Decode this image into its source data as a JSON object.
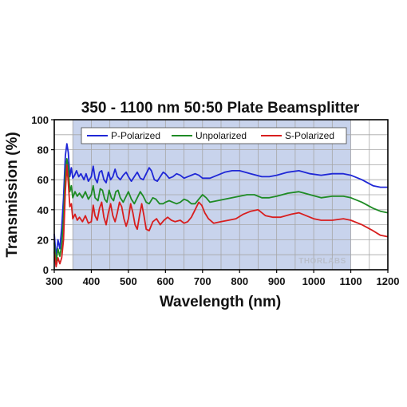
{
  "chart_data": {
    "type": "line",
    "title": "350 - 1100 nm 50:50 Plate Beamsplitter",
    "xlabel": "Wavelength (nm)",
    "ylabel": "Transmission (%)",
    "xlim": [
      300,
      1200
    ],
    "ylim": [
      0,
      100
    ],
    "x_ticks": [
      300,
      400,
      500,
      600,
      700,
      800,
      900,
      1000,
      1100,
      1200
    ],
    "y_ticks": [
      0,
      20,
      40,
      60,
      80,
      100
    ],
    "grid": true,
    "legend_position": "top",
    "shaded_band": {
      "x_range": [
        350,
        1100
      ],
      "color": "#c8d3ec"
    },
    "watermark": "THORLABS",
    "series": [
      {
        "name": "P-Polarized",
        "color": "#1f27d6",
        "points": [
          [
            300,
            24
          ],
          [
            305,
            8
          ],
          [
            310,
            20
          ],
          [
            315,
            14
          ],
          [
            320,
            28
          ],
          [
            325,
            48
          ],
          [
            330,
            76
          ],
          [
            334,
            84
          ],
          [
            338,
            78
          ],
          [
            342,
            62
          ],
          [
            346,
            68
          ],
          [
            350,
            61
          ],
          [
            355,
            63
          ],
          [
            360,
            66
          ],
          [
            366,
            62
          ],
          [
            372,
            64
          ],
          [
            380,
            60
          ],
          [
            386,
            64
          ],
          [
            392,
            59
          ],
          [
            400,
            62
          ],
          [
            405,
            69
          ],
          [
            410,
            61
          ],
          [
            416,
            58
          ],
          [
            422,
            65
          ],
          [
            428,
            66
          ],
          [
            434,
            60
          ],
          [
            440,
            58
          ],
          [
            446,
            65
          ],
          [
            452,
            60
          ],
          [
            458,
            62
          ],
          [
            464,
            67
          ],
          [
            470,
            62
          ],
          [
            478,
            60
          ],
          [
            486,
            63
          ],
          [
            494,
            65
          ],
          [
            500,
            62
          ],
          [
            508,
            59
          ],
          [
            516,
            62
          ],
          [
            524,
            65
          ],
          [
            532,
            61
          ],
          [
            540,
            60
          ],
          [
            548,
            64
          ],
          [
            556,
            68
          ],
          [
            562,
            66
          ],
          [
            570,
            60
          ],
          [
            578,
            59
          ],
          [
            586,
            62
          ],
          [
            594,
            65
          ],
          [
            600,
            64
          ],
          [
            610,
            61
          ],
          [
            620,
            62
          ],
          [
            630,
            64
          ],
          [
            640,
            63
          ],
          [
            650,
            61
          ],
          [
            660,
            62
          ],
          [
            670,
            63
          ],
          [
            680,
            64
          ],
          [
            690,
            63
          ],
          [
            700,
            61
          ],
          [
            720,
            61
          ],
          [
            740,
            63
          ],
          [
            760,
            65
          ],
          [
            780,
            66
          ],
          [
            800,
            66
          ],
          [
            830,
            64
          ],
          [
            860,
            62
          ],
          [
            880,
            62
          ],
          [
            900,
            63
          ],
          [
            930,
            65
          ],
          [
            960,
            66
          ],
          [
            990,
            64
          ],
          [
            1020,
            63
          ],
          [
            1050,
            64
          ],
          [
            1080,
            64
          ],
          [
            1100,
            63
          ],
          [
            1130,
            60
          ],
          [
            1160,
            56
          ],
          [
            1180,
            55
          ],
          [
            1200,
            55
          ]
        ]
      },
      {
        "name": "Unpolarized",
        "color": "#1e8b25",
        "points": [
          [
            300,
            18
          ],
          [
            305,
            5
          ],
          [
            310,
            14
          ],
          [
            315,
            9
          ],
          [
            320,
            16
          ],
          [
            325,
            34
          ],
          [
            330,
            64
          ],
          [
            334,
            74
          ],
          [
            338,
            68
          ],
          [
            342,
            52
          ],
          [
            346,
            56
          ],
          [
            350,
            48
          ],
          [
            356,
            52
          ],
          [
            362,
            49
          ],
          [
            368,
            51
          ],
          [
            376,
            48
          ],
          [
            384,
            52
          ],
          [
            392,
            47
          ],
          [
            400,
            50
          ],
          [
            405,
            56
          ],
          [
            410,
            48
          ],
          [
            418,
            46
          ],
          [
            424,
            54
          ],
          [
            430,
            53
          ],
          [
            436,
            47
          ],
          [
            442,
            45
          ],
          [
            448,
            53
          ],
          [
            454,
            48
          ],
          [
            460,
            46
          ],
          [
            466,
            52
          ],
          [
            472,
            53
          ],
          [
            478,
            48
          ],
          [
            486,
            45
          ],
          [
            494,
            49
          ],
          [
            500,
            52
          ],
          [
            508,
            47
          ],
          [
            516,
            44
          ],
          [
            524,
            48
          ],
          [
            532,
            52
          ],
          [
            540,
            49
          ],
          [
            548,
            45
          ],
          [
            556,
            44
          ],
          [
            566,
            48
          ],
          [
            574,
            47
          ],
          [
            584,
            44
          ],
          [
            594,
            44
          ],
          [
            600,
            45
          ],
          [
            610,
            46
          ],
          [
            620,
            45
          ],
          [
            630,
            44
          ],
          [
            640,
            45
          ],
          [
            650,
            47
          ],
          [
            660,
            46
          ],
          [
            670,
            44
          ],
          [
            680,
            44
          ],
          [
            690,
            47
          ],
          [
            700,
            50
          ],
          [
            710,
            48
          ],
          [
            720,
            45
          ],
          [
            740,
            46
          ],
          [
            760,
            47
          ],
          [
            780,
            48
          ],
          [
            800,
            49
          ],
          [
            820,
            50
          ],
          [
            840,
            50
          ],
          [
            860,
            48
          ],
          [
            880,
            48
          ],
          [
            900,
            49
          ],
          [
            930,
            51
          ],
          [
            960,
            52
          ],
          [
            990,
            50
          ],
          [
            1020,
            48
          ],
          [
            1050,
            49
          ],
          [
            1080,
            49
          ],
          [
            1100,
            48
          ],
          [
            1130,
            45
          ],
          [
            1160,
            41
          ],
          [
            1180,
            39
          ],
          [
            1200,
            38
          ]
        ]
      },
      {
        "name": "S-Polarized",
        "color": "#d81e1e",
        "points": [
          [
            300,
            12
          ],
          [
            305,
            2
          ],
          [
            310,
            8
          ],
          [
            315,
            4
          ],
          [
            320,
            8
          ],
          [
            325,
            20
          ],
          [
            330,
            52
          ],
          [
            334,
            70
          ],
          [
            338,
            58
          ],
          [
            342,
            42
          ],
          [
            346,
            44
          ],
          [
            350,
            34
          ],
          [
            356,
            37
          ],
          [
            362,
            33
          ],
          [
            368,
            35
          ],
          [
            376,
            32
          ],
          [
            384,
            36
          ],
          [
            392,
            31
          ],
          [
            400,
            32
          ],
          [
            405,
            43
          ],
          [
            410,
            36
          ],
          [
            416,
            33
          ],
          [
            422,
            41
          ],
          [
            428,
            45
          ],
          [
            434,
            35
          ],
          [
            440,
            30
          ],
          [
            446,
            38
          ],
          [
            452,
            44
          ],
          [
            458,
            36
          ],
          [
            464,
            32
          ],
          [
            470,
            38
          ],
          [
            476,
            45
          ],
          [
            482,
            42
          ],
          [
            488,
            34
          ],
          [
            494,
            29
          ],
          [
            500,
            34
          ],
          [
            506,
            44
          ],
          [
            512,
            38
          ],
          [
            518,
            30
          ],
          [
            524,
            27
          ],
          [
            530,
            36
          ],
          [
            536,
            44
          ],
          [
            542,
            36
          ],
          [
            548,
            27
          ],
          [
            556,
            26
          ],
          [
            566,
            32
          ],
          [
            576,
            34
          ],
          [
            586,
            30
          ],
          [
            596,
            33
          ],
          [
            606,
            35
          ],
          [
            616,
            33
          ],
          [
            626,
            32
          ],
          [
            640,
            33
          ],
          [
            650,
            31
          ],
          [
            660,
            32
          ],
          [
            670,
            35
          ],
          [
            680,
            40
          ],
          [
            690,
            45
          ],
          [
            698,
            43
          ],
          [
            706,
            38
          ],
          [
            716,
            34
          ],
          [
            730,
            31
          ],
          [
            750,
            32
          ],
          [
            770,
            33
          ],
          [
            790,
            34
          ],
          [
            810,
            37
          ],
          [
            830,
            39
          ],
          [
            850,
            40
          ],
          [
            870,
            36
          ],
          [
            890,
            35
          ],
          [
            910,
            35
          ],
          [
            940,
            37
          ],
          [
            960,
            38
          ],
          [
            980,
            36
          ],
          [
            1000,
            34
          ],
          [
            1020,
            33
          ],
          [
            1050,
            33
          ],
          [
            1080,
            34
          ],
          [
            1100,
            33
          ],
          [
            1130,
            30
          ],
          [
            1160,
            26
          ],
          [
            1180,
            23
          ],
          [
            1200,
            22
          ]
        ]
      }
    ]
  }
}
